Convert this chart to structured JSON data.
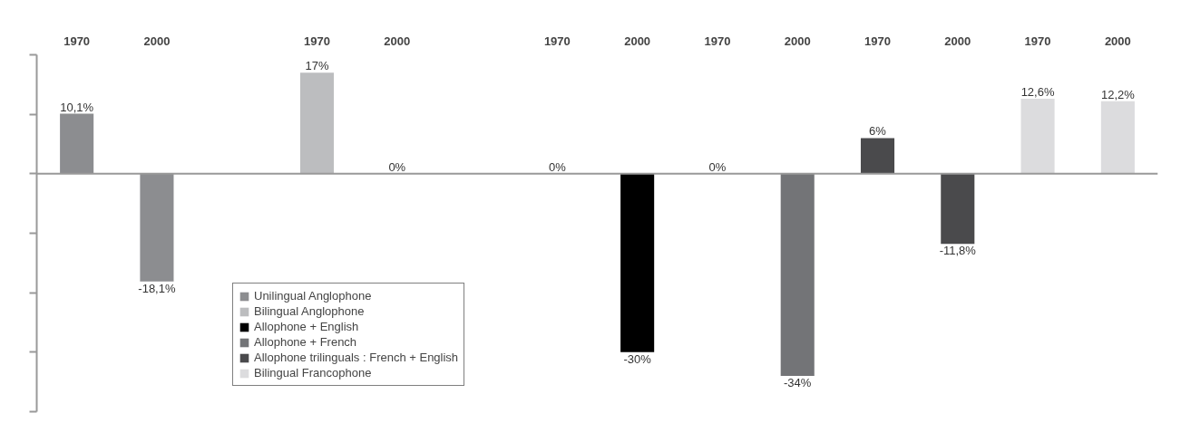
{
  "chart_data": {
    "type": "bar",
    "categories": [
      "1970",
      "2000",
      null,
      "1970",
      "2000",
      null,
      "1970",
      "2000",
      "1970",
      "2000",
      "1970",
      "2000",
      "1970",
      "2000"
    ],
    "series": [
      {
        "name": "Unilingual Anglophone",
        "color": "#8c8d90",
        "values": [
          10.1,
          -18.1,
          null,
          null,
          null,
          null,
          null,
          null,
          null,
          null,
          null,
          null,
          null,
          null
        ],
        "value_labels": [
          "10,1%",
          "-18,1%",
          null,
          null,
          null,
          null,
          null,
          null,
          null,
          null,
          null,
          null,
          null,
          null
        ]
      },
      {
        "name": "Bilingual Anglophone",
        "color": "#bcbdbf",
        "values": [
          null,
          null,
          null,
          17,
          0,
          null,
          null,
          null,
          null,
          null,
          null,
          null,
          null,
          null
        ],
        "value_labels": [
          null,
          null,
          null,
          "17%",
          "0%",
          null,
          null,
          null,
          null,
          null,
          null,
          null,
          null,
          null
        ]
      },
      {
        "name": "Allophone + English",
        "color": "#000000",
        "values": [
          null,
          null,
          null,
          null,
          null,
          null,
          0,
          -30,
          null,
          null,
          null,
          null,
          null,
          null
        ],
        "value_labels": [
          null,
          null,
          null,
          null,
          null,
          null,
          "0%",
          "-30%",
          null,
          null,
          null,
          null,
          null,
          null
        ]
      },
      {
        "name": "Allophone + French",
        "color": "#737477",
        "values": [
          null,
          null,
          null,
          null,
          null,
          null,
          null,
          null,
          0,
          -34,
          null,
          null,
          null,
          null
        ],
        "value_labels": [
          null,
          null,
          null,
          null,
          null,
          null,
          null,
          null,
          "0%",
          "-34%",
          null,
          null,
          null,
          null
        ]
      },
      {
        "name": "Allophone trilinguals : French + English",
        "color": "#4a4a4c",
        "values": [
          null,
          null,
          null,
          null,
          null,
          null,
          null,
          null,
          null,
          null,
          6,
          -11.8,
          null,
          null
        ],
        "value_labels": [
          null,
          null,
          null,
          null,
          null,
          null,
          null,
          null,
          null,
          null,
          "6%",
          "-11,8%",
          null,
          null
        ]
      },
      {
        "name": "Bilingual Francophone",
        "color": "#dcdcde",
        "values": [
          null,
          null,
          null,
          null,
          null,
          null,
          null,
          null,
          null,
          null,
          null,
          null,
          12.6,
          12.2
        ],
        "value_labels": [
          null,
          null,
          null,
          null,
          null,
          null,
          null,
          null,
          null,
          null,
          null,
          null,
          "12,6%",
          "12,2%"
        ]
      }
    ],
    "ylim": [
      -40,
      20
    ],
    "yticks": [
      {
        "value": 20,
        "label": null
      },
      {
        "value": 10,
        "label": null
      },
      {
        "value": 0,
        "label": null
      },
      {
        "value": -10,
        "label": null
      },
      {
        "value": -20,
        "label": null
      },
      {
        "value": -30,
        "label": null
      },
      {
        "value": -40,
        "label": null
      }
    ],
    "tick_labels": "x",
    "grid": false,
    "legend": "bottom left"
  }
}
